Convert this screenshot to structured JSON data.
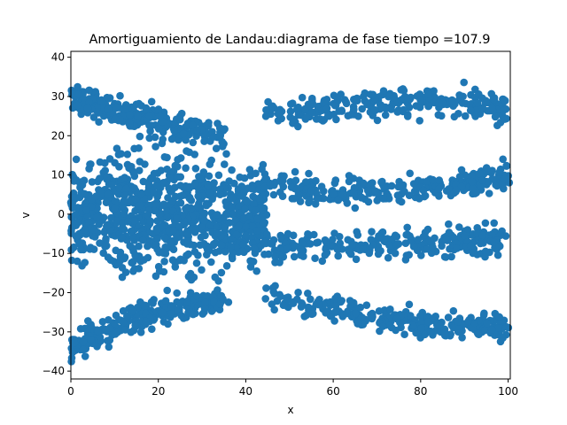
{
  "chart_data": {
    "type": "scatter",
    "title": "Amortiguamiento de Landau:diagrama de fase  tiempo =107.9",
    "xlabel": "x",
    "ylabel": "v",
    "xlim": [
      0,
      100.5
    ],
    "ylim": [
      -42,
      41.5
    ],
    "xticks": [
      0,
      20,
      40,
      60,
      80,
      100
    ],
    "yticks": [
      -40,
      -30,
      -20,
      -10,
      0,
      10,
      20,
      30,
      40
    ],
    "grid": false,
    "color": "#1f77b4",
    "series": [
      {
        "structures": [
          {
            "kind": "core",
            "x_range": [
              0,
              45
            ],
            "v_range": [
              -20,
              20
            ],
            "density": "dense"
          },
          {
            "kind": "upper_arm",
            "from": [
              45,
              25
            ],
            "through": [
              80,
              31
            ],
            "to": [
              100,
              27
            ]
          },
          {
            "kind": "upper_left_arm",
            "from": [
              0,
              30
            ],
            "through": [
              15,
              24
            ],
            "to": [
              35,
              20
            ]
          },
          {
            "kind": "lower_arm",
            "from": [
              45,
              -20
            ],
            "through": [
              80,
              -31
            ],
            "to": [
              100,
              -28
            ]
          },
          {
            "kind": "lower_left_arm",
            "from": [
              0,
              -34
            ],
            "through": [
              15,
              -24
            ],
            "to": [
              35,
              -22
            ]
          },
          {
            "kind": "inner_upper_band",
            "from": [
              45,
              8
            ],
            "through": [
              75,
              3
            ],
            "to": [
              100,
              10
            ]
          },
          {
            "kind": "inner_lower_band",
            "from": [
              45,
              -8
            ],
            "through": [
              75,
              -8
            ],
            "to": [
              100,
              -6
            ]
          }
        ]
      }
    ]
  }
}
